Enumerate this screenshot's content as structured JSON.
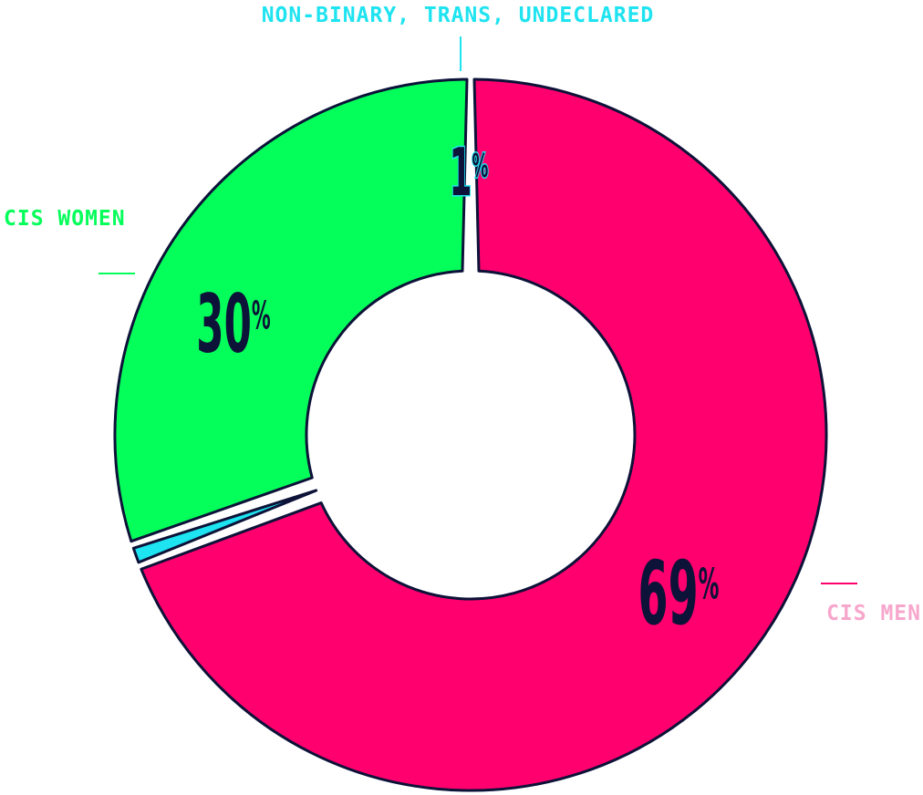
{
  "chart_data": {
    "type": "donut",
    "categories": [
      "CIS MEN",
      "NON-BINARY, TRANS, UNDECLARED",
      "CIS WOMEN"
    ],
    "values": [
      69,
      1,
      30
    ],
    "value_labels": [
      "69",
      "1",
      "30"
    ],
    "percent_symbol": "%",
    "colors": [
      "#ff006e",
      "#1ee3f0",
      "#05ff5a"
    ],
    "label_colors": [
      "#f7a6cc",
      "#1ee3f0",
      "#05ff5a"
    ],
    "outline_color": "#0c1238"
  }
}
